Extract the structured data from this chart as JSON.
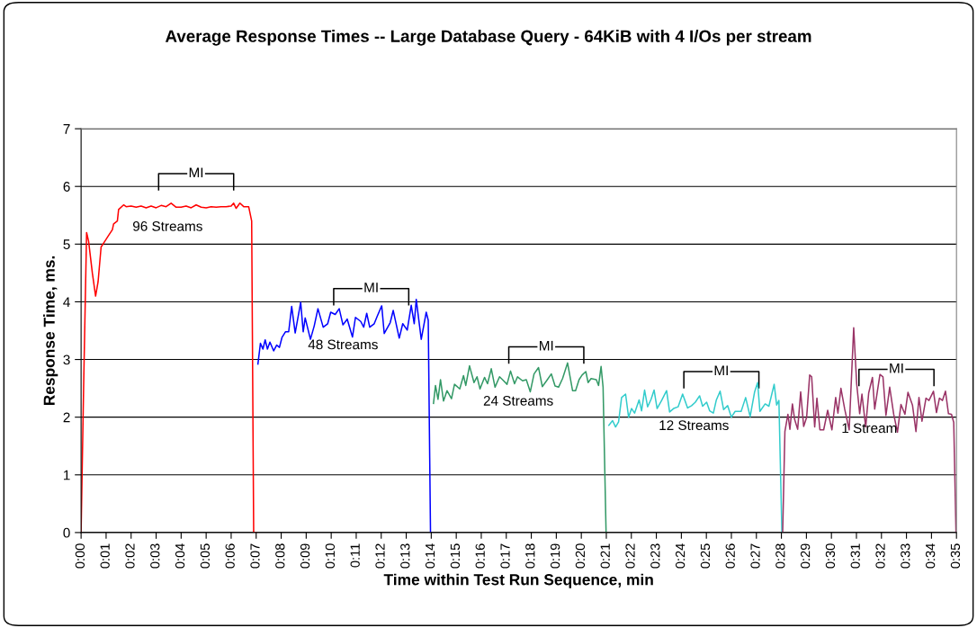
{
  "chart_data": {
    "type": "line",
    "title": "Average Response Times -- Large Database Query - 64KiB with 4 I/Os per stream",
    "xlabel": "Time within Test Run Sequence, min",
    "ylabel": "Response Time, ms.",
    "xlim": [
      0,
      35
    ],
    "ylim": [
      0,
      7
    ],
    "yticks": [
      0,
      1,
      2,
      3,
      4,
      5,
      6,
      7
    ],
    "xticks": [
      {
        "value": 0,
        "label": "0:00"
      },
      {
        "value": 1,
        "label": "0:01"
      },
      {
        "value": 2,
        "label": "0:02"
      },
      {
        "value": 3,
        "label": "0:03"
      },
      {
        "value": 4,
        "label": "0:04"
      },
      {
        "value": 5,
        "label": "0:05"
      },
      {
        "value": 6,
        "label": "0:06"
      },
      {
        "value": 7,
        "label": "0:07"
      },
      {
        "value": 8,
        "label": "0:08"
      },
      {
        "value": 9,
        "label": "0:09"
      },
      {
        "value": 10,
        "label": "0:10"
      },
      {
        "value": 11,
        "label": "0:11"
      },
      {
        "value": 12,
        "label": "0:12"
      },
      {
        "value": 13,
        "label": "0:13"
      },
      {
        "value": 14,
        "label": "0:14"
      },
      {
        "value": 15,
        "label": "0:15"
      },
      {
        "value": 16,
        "label": "0:16"
      },
      {
        "value": 17,
        "label": "0:17"
      },
      {
        "value": 18,
        "label": "0:18"
      },
      {
        "value": 19,
        "label": "0:19"
      },
      {
        "value": 20,
        "label": "0:20"
      },
      {
        "value": 21,
        "label": "0:21"
      },
      {
        "value": 22,
        "label": "0:22"
      },
      {
        "value": 23,
        "label": "0:23"
      },
      {
        "value": 24,
        "label": "0:24"
      },
      {
        "value": 25,
        "label": "0:25"
      },
      {
        "value": 26,
        "label": "0:26"
      },
      {
        "value": 27,
        "label": "0:27"
      },
      {
        "value": 28,
        "label": "0:28"
      },
      {
        "value": 29,
        "label": "0:29"
      },
      {
        "value": 30,
        "label": "0:30"
      },
      {
        "value": 31,
        "label": "0:31"
      },
      {
        "value": 32,
        "label": "0:32"
      },
      {
        "value": 33,
        "label": "0:33"
      },
      {
        "value": 34,
        "label": "0:34"
      },
      {
        "value": 35,
        "label": "0:35"
      }
    ],
    "grid": "y",
    "legend": false,
    "marker": "none",
    "line_style": "solid",
    "series": [
      {
        "name": "96 Streams",
        "color": "#ff0000",
        "x": [
          0,
          0.1,
          0.22,
          0.3,
          0.45,
          0.58,
          0.68,
          0.8,
          0.95,
          1.1,
          1.25,
          1.3,
          1.45,
          1.5,
          1.7,
          1.8,
          2.0,
          2.2,
          2.4,
          2.6,
          2.8,
          3.0,
          3.2,
          3.4,
          3.6,
          3.8,
          4.0,
          4.2,
          4.4,
          4.6,
          4.8,
          5.0,
          5.2,
          5.4,
          5.6,
          5.8,
          6.0,
          6.1,
          6.2,
          6.35,
          6.5,
          6.7,
          6.82,
          6.9,
          7.0
        ],
        "values": [
          0,
          2.5,
          5.2,
          5.05,
          4.5,
          4.1,
          4.35,
          4.95,
          5.05,
          5.15,
          5.25,
          5.35,
          5.4,
          5.6,
          5.68,
          5.65,
          5.66,
          5.64,
          5.66,
          5.63,
          5.66,
          5.63,
          5.67,
          5.65,
          5.71,
          5.64,
          5.64,
          5.66,
          5.63,
          5.68,
          5.64,
          5.63,
          5.65,
          5.64,
          5.65,
          5.65,
          5.66,
          5.71,
          5.62,
          5.71,
          5.65,
          5.65,
          5.4,
          0,
          0
        ]
      },
      {
        "name": "48 Streams",
        "color": "#0000ff",
        "x": [
          7.07,
          7.17,
          7.27,
          7.36,
          7.45,
          7.55,
          7.7,
          7.82,
          7.93,
          8.03,
          8.17,
          8.3,
          8.42,
          8.56,
          8.78,
          8.88,
          8.96,
          9.17,
          9.32,
          9.47,
          9.68,
          9.86,
          9.98,
          10.16,
          10.32,
          10.47,
          10.64,
          10.85,
          10.97,
          11.18,
          11.3,
          11.42,
          11.54,
          11.72,
          11.84,
          12.02,
          12.12,
          12.36,
          12.48,
          12.72,
          12.86,
          13.04,
          13.2,
          13.32,
          13.4,
          13.6,
          13.8,
          13.88,
          13.97
        ],
        "values": [
          2.92,
          3.28,
          3.18,
          3.34,
          3.18,
          3.3,
          3.15,
          3.25,
          3.21,
          3.38,
          3.48,
          3.48,
          3.92,
          3.46,
          3.99,
          3.48,
          3.72,
          3.35,
          3.58,
          3.88,
          3.56,
          3.62,
          3.82,
          3.78,
          3.88,
          3.6,
          3.7,
          3.39,
          3.73,
          3.66,
          3.56,
          3.8,
          3.56,
          3.62,
          3.75,
          3.93,
          3.45,
          3.64,
          3.85,
          3.37,
          3.62,
          3.51,
          3.94,
          3.62,
          4.04,
          3.35,
          3.82,
          3.68,
          0
        ]
      },
      {
        "name": "24 Streams",
        "color": "#339966",
        "x": [
          14.09,
          14.17,
          14.27,
          14.37,
          14.49,
          14.63,
          14.81,
          14.93,
          15.14,
          15.29,
          15.38,
          15.53,
          15.71,
          15.83,
          15.95,
          16.13,
          16.25,
          16.4,
          16.55,
          16.73,
          16.85,
          17.03,
          17.17,
          17.33,
          17.45,
          17.65,
          17.8,
          17.96,
          18.11,
          18.29,
          18.44,
          18.61,
          18.8,
          18.95,
          19.09,
          19.25,
          19.45,
          19.65,
          19.77,
          19.91,
          20.03,
          20.18,
          20.27,
          20.39,
          20.6,
          20.69,
          20.79,
          20.87,
          20.99
        ],
        "values": [
          2.24,
          2.55,
          2.31,
          2.65,
          2.28,
          2.46,
          2.32,
          2.57,
          2.49,
          2.72,
          2.55,
          2.89,
          2.6,
          2.7,
          2.49,
          2.69,
          2.58,
          2.84,
          2.52,
          2.7,
          2.65,
          2.57,
          2.8,
          2.58,
          2.7,
          2.63,
          2.65,
          2.44,
          2.75,
          2.86,
          2.53,
          2.63,
          2.75,
          2.54,
          2.52,
          2.67,
          2.94,
          2.46,
          2.46,
          2.65,
          2.73,
          2.79,
          2.6,
          2.67,
          2.65,
          2.55,
          2.88,
          2.52,
          0
        ]
      },
      {
        "name": "12 Streams",
        "color": "#33cccc",
        "x": [
          21.1,
          21.25,
          21.37,
          21.49,
          21.61,
          21.77,
          21.89,
          22.01,
          22.13,
          22.31,
          22.41,
          22.53,
          22.65,
          22.79,
          22.91,
          23.03,
          23.21,
          23.41,
          23.53,
          23.69,
          23.87,
          24.05,
          24.25,
          24.41,
          24.56,
          24.73,
          24.85,
          25.01,
          25.13,
          25.28,
          25.4,
          25.55,
          25.69,
          25.85,
          26.0,
          26.15,
          26.39,
          26.57,
          26.75,
          26.93,
          27.05,
          27.14,
          27.35,
          27.5,
          27.71,
          27.81,
          27.9,
          28.02
        ],
        "values": [
          1.86,
          1.94,
          1.83,
          1.92,
          2.34,
          2.4,
          2.0,
          2.15,
          2.07,
          2.3,
          2.11,
          2.47,
          2.18,
          2.31,
          2.47,
          2.15,
          2.29,
          2.46,
          2.09,
          2.15,
          2.18,
          2.4,
          2.16,
          2.2,
          2.26,
          2.37,
          2.19,
          2.26,
          2.11,
          2.07,
          2.3,
          2.45,
          2.13,
          2.2,
          2.0,
          2.1,
          2.1,
          2.34,
          2.01,
          2.44,
          2.6,
          2.1,
          2.23,
          2.19,
          2.57,
          2.21,
          2.29,
          0
        ]
      },
      {
        "name": "1 Stream",
        "color": "#993366",
        "x": [
          28.05,
          28.14,
          28.26,
          28.34,
          28.44,
          28.53,
          28.65,
          28.77,
          28.89,
          29.01,
          29.13,
          29.21,
          29.33,
          29.42,
          29.54,
          29.69,
          29.85,
          30.02,
          30.17,
          30.26,
          30.38,
          30.53,
          30.71,
          30.89,
          31.01,
          31.13,
          31.22,
          31.37,
          31.49,
          31.64,
          31.73,
          31.94,
          32.06,
          32.18,
          32.33,
          32.49,
          32.64,
          32.78,
          32.94,
          33.06,
          33.24,
          33.38,
          33.5,
          33.62,
          33.78,
          33.9,
          34.08,
          34.2,
          34.32,
          34.44,
          34.56,
          34.68,
          34.8,
          34.89,
          34.98
        ],
        "values": [
          0,
          1.75,
          2.05,
          1.79,
          2.23,
          1.96,
          1.79,
          2.44,
          1.84,
          2.0,
          2.73,
          2.7,
          1.83,
          2.33,
          1.78,
          1.78,
          2.12,
          1.78,
          2.34,
          2.07,
          2.5,
          2.14,
          1.78,
          3.55,
          2.58,
          2.06,
          2.4,
          1.83,
          2.42,
          2.69,
          2.14,
          2.74,
          2.7,
          2.03,
          2.52,
          2.05,
          1.74,
          2.22,
          2.05,
          2.43,
          2.21,
          1.75,
          2.34,
          1.93,
          2.33,
          2.29,
          2.45,
          2.08,
          2.33,
          2.29,
          2.45,
          2.06,
          2.05,
          1.91,
          0
        ]
      }
    ],
    "annotations": [
      {
        "text": "MI",
        "x": 4.6,
        "y": 6.22
      },
      {
        "text": "MI",
        "x": 11.6,
        "y": 4.23
      },
      {
        "text": "MI",
        "x": 18.6,
        "y": 3.22
      },
      {
        "text": "MI",
        "x": 25.6,
        "y": 2.79
      },
      {
        "text": "MI",
        "x": 32.6,
        "y": 2.83
      }
    ]
  }
}
